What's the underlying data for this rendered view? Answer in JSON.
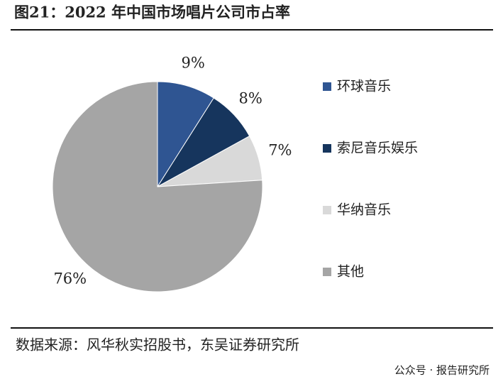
{
  "chart_data": {
    "type": "pie",
    "title": "图21：2022 年中国市场唱片公司市占率",
    "categories": [
      "环球音乐",
      "索尼音乐娱乐",
      "华纳音乐",
      "其他"
    ],
    "values": [
      9,
      8,
      7,
      76
    ],
    "value_labels": [
      "9%",
      "8%",
      "7%",
      "76%"
    ],
    "colors": [
      "#2f5592",
      "#16355d",
      "#d9d9d9",
      "#a5a5a5"
    ],
    "legend": "right"
  },
  "source": "数据来源：风华秋实招股书，东吴证券研究所",
  "watermark": "公众号 · 报告研究所"
}
